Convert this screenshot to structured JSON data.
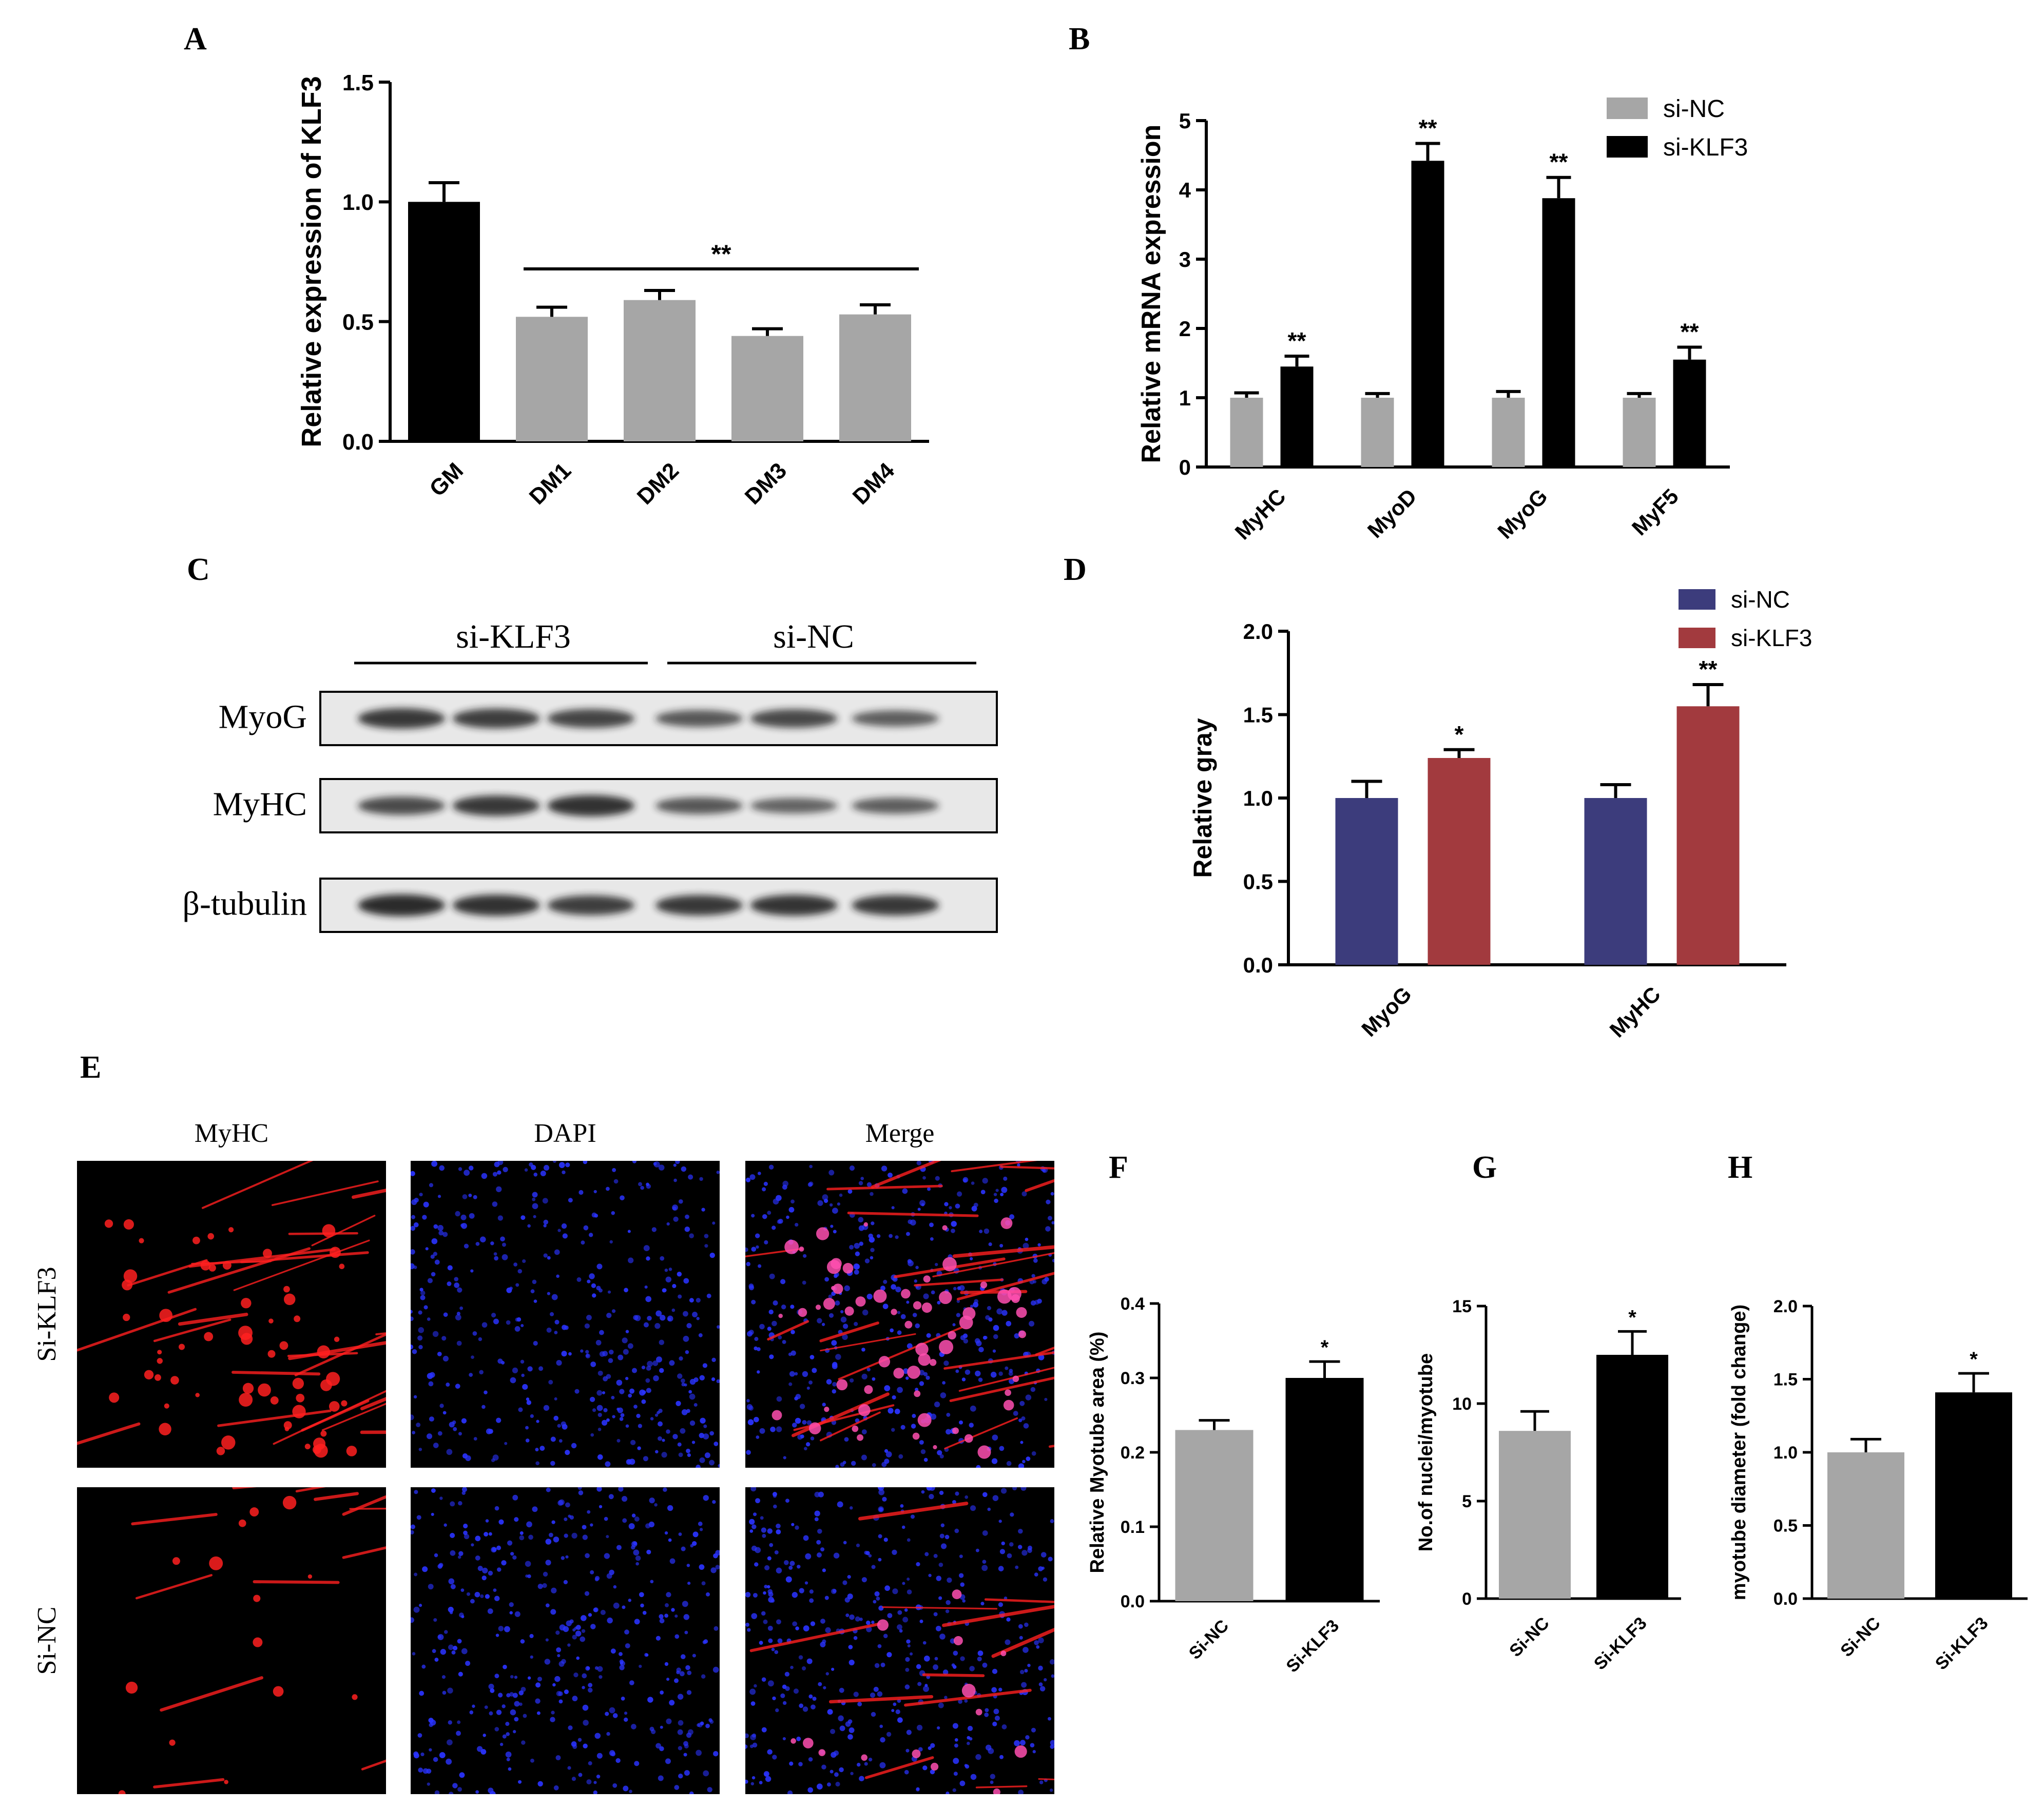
{
  "panel_labels": [
    "A",
    "B",
    "C",
    "D",
    "E",
    "F",
    "G",
    "H"
  ],
  "colors": {
    "black": "#000000",
    "gray": "#a6a6a6",
    "navy": "#3c3c7c",
    "darkred": "#a23a3e",
    "blot_bg": "#e8e8e8",
    "blot_band": "#1a1a1a",
    "red_fluor": "#ff2020",
    "blue_fluor": "#2a33ff"
  },
  "chart_data": [
    {
      "id": "A",
      "type": "bar",
      "ylabel": "Relative expression of KLF3",
      "categories": [
        "GM",
        "DM1",
        "DM2",
        "DM3",
        "DM4"
      ],
      "values": [
        1.0,
        0.52,
        0.59,
        0.44,
        0.53
      ],
      "errors": [
        0.08,
        0.04,
        0.04,
        0.03,
        0.04
      ],
      "bar_colors": [
        "#000000",
        "#a6a6a6",
        "#a6a6a6",
        "#a6a6a6",
        "#a6a6a6"
      ],
      "ylim": [
        0,
        1.5
      ],
      "yticks": [
        "0.0",
        "0.5",
        "1.0",
        "1.5"
      ],
      "significance": {
        "label": "**",
        "from_category": 1,
        "to_category": 4
      }
    },
    {
      "id": "B",
      "type": "bar",
      "ylabel": "Relative mRNA expression",
      "categories": [
        "MyHC",
        "MyoD",
        "MyoG",
        "MyF5"
      ],
      "series": [
        {
          "name": "si-NC",
          "color": "#a6a6a6",
          "values": [
            1.0,
            1.0,
            1.0,
            1.0
          ],
          "errors": [
            0.07,
            0.06,
            0.09,
            0.06
          ],
          "marks": [
            "",
            "",
            "",
            ""
          ]
        },
        {
          "name": "si-KLF3",
          "color": "#000000",
          "values": [
            1.45,
            4.42,
            3.88,
            1.55
          ],
          "errors": [
            0.15,
            0.25,
            0.3,
            0.18
          ],
          "marks": [
            "**",
            "**",
            "**",
            "**"
          ]
        }
      ],
      "ylim": [
        0,
        5
      ],
      "yticks": [
        "0",
        "1",
        "2",
        "3",
        "4",
        "5"
      ],
      "legend": "top-right"
    },
    {
      "id": "D",
      "type": "bar",
      "ylabel": "Relative gray",
      "categories": [
        "MyoG",
        "MyHC"
      ],
      "series": [
        {
          "name": "si-NC",
          "color": "#3c3c7c",
          "values": [
            1.0,
            1.0
          ],
          "errors": [
            0.1,
            0.08
          ],
          "marks": [
            "",
            ""
          ]
        },
        {
          "name": "si-KLF3",
          "color": "#a23a3e",
          "values": [
            1.24,
            1.55
          ],
          "errors": [
            0.05,
            0.13
          ],
          "marks": [
            "*",
            "**"
          ]
        }
      ],
      "ylim": [
        0,
        2.0
      ],
      "yticks": [
        "0.0",
        "0.5",
        "1.0",
        "1.5",
        "2.0"
      ],
      "legend": "top-right"
    },
    {
      "id": "F",
      "type": "bar",
      "ylabel": "Relative Myotube area (%)",
      "categories": [
        "Si-NC",
        "Si-KLF3"
      ],
      "values": [
        0.23,
        0.3
      ],
      "errors": [
        0.013,
        0.022
      ],
      "marks": [
        "",
        "*"
      ],
      "bar_colors": [
        "#a6a6a6",
        "#000000"
      ],
      "ylim": [
        0,
        0.4
      ],
      "yticks": [
        "0.0",
        "0.1",
        "0.2",
        "0.3",
        "0.4"
      ]
    },
    {
      "id": "G",
      "type": "bar",
      "ylabel": "No.of nuclei/myotube",
      "categories": [
        "Si-NC",
        "Si-KLF3"
      ],
      "values": [
        8.6,
        12.5
      ],
      "errors": [
        1.0,
        1.2
      ],
      "marks": [
        "",
        "*"
      ],
      "bar_colors": [
        "#a6a6a6",
        "#000000"
      ],
      "ylim": [
        0,
        15
      ],
      "yticks": [
        "0",
        "5",
        "10",
        "15"
      ]
    },
    {
      "id": "H",
      "type": "bar",
      "ylabel": "myotube diameter (fold change)",
      "categories": [
        "Si-NC",
        "Si-KLF3"
      ],
      "values": [
        1.0,
        1.41
      ],
      "errors": [
        0.09,
        0.13
      ],
      "marks": [
        "",
        "*"
      ],
      "bar_colors": [
        "#a6a6a6",
        "#000000"
      ],
      "ylim": [
        0,
        2.0
      ],
      "yticks": [
        "0.0",
        "0.5",
        "1.0",
        "1.5",
        "2.0"
      ]
    }
  ],
  "western_blot": {
    "groups": [
      "si-KLF3",
      "si-NC"
    ],
    "rows": [
      {
        "label": "MyoG",
        "intensities": [
          0.85,
          0.8,
          0.75,
          0.6,
          0.72,
          0.55
        ]
      },
      {
        "label": "MyHC",
        "intensities": [
          0.7,
          0.85,
          0.9,
          0.6,
          0.5,
          0.55
        ]
      },
      {
        "label": "β-tubulin",
        "intensities": [
          0.95,
          0.9,
          0.8,
          0.85,
          0.88,
          0.85
        ]
      }
    ]
  },
  "micrographs": {
    "columns": [
      "MyHC",
      "DAPI",
      "Merge"
    ],
    "rows": [
      "Si-KLF3",
      "Si-NC"
    ]
  }
}
